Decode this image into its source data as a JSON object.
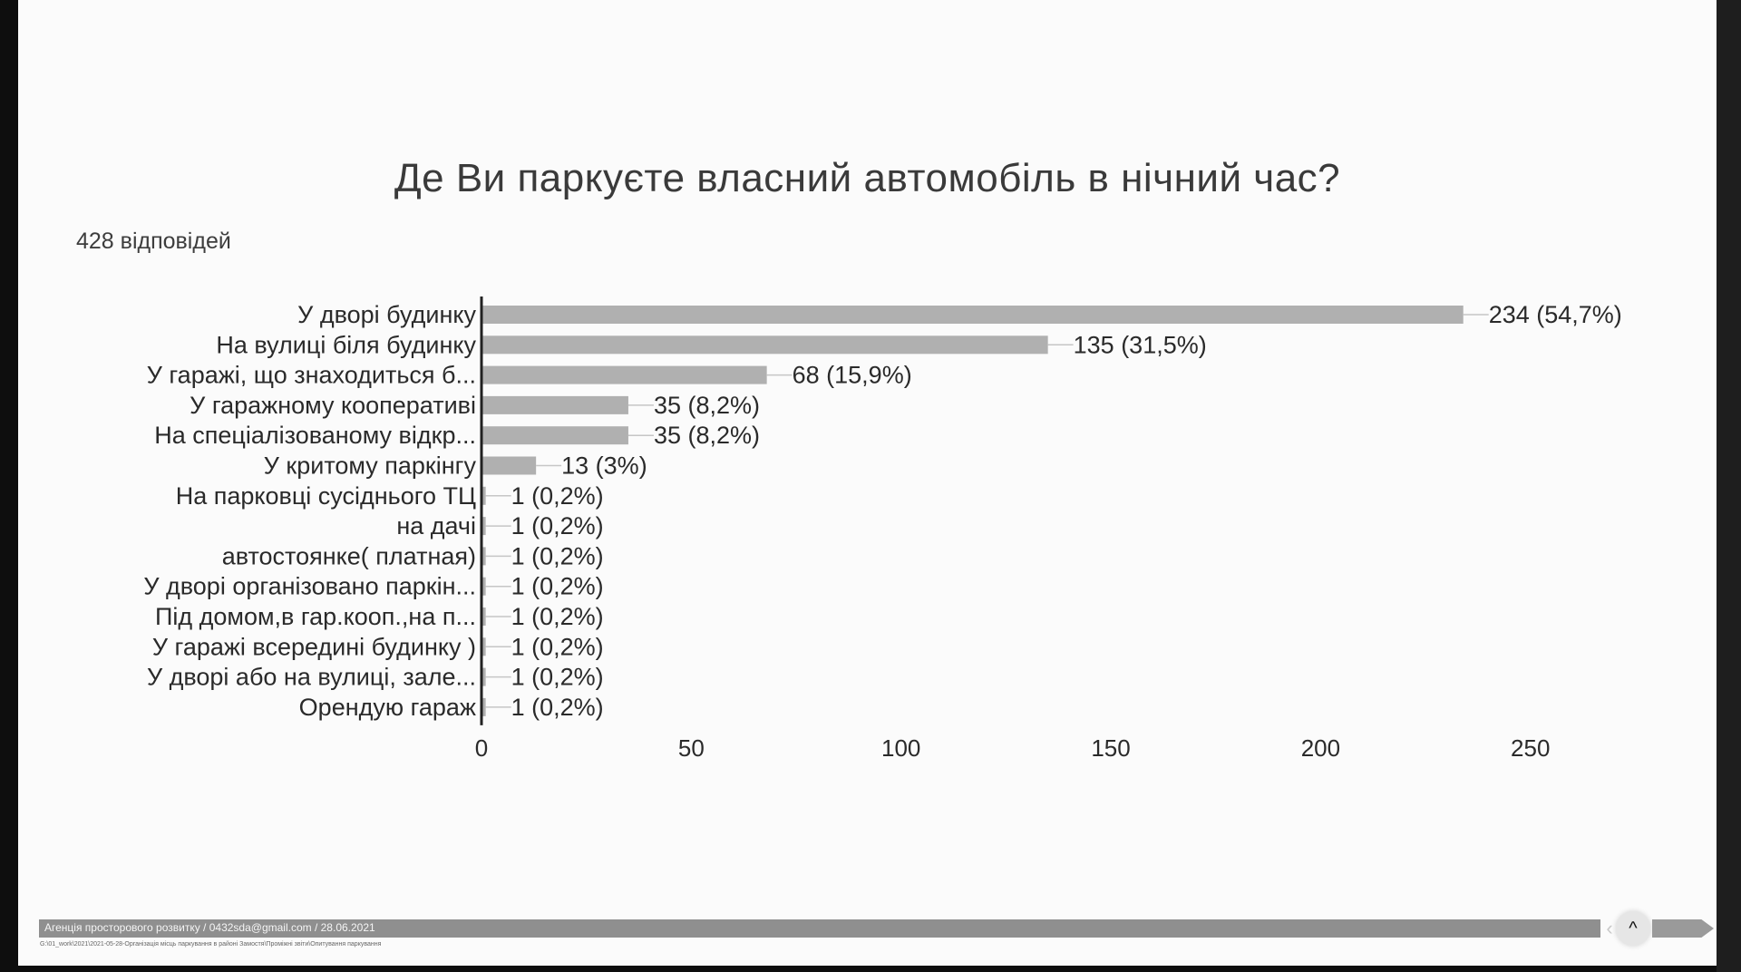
{
  "title": "Де Ви паркуєте власний автомобіль в нічний час?",
  "responses": "428 відповідей",
  "footer": {
    "text": "Агенція просторового розвитку / 0432sda@gmail.com / 28.06.2021",
    "path": "G:\\01_work\\2021\\2021-05-28-Організація місць паркування в районі Замостя\\Проміжні звіти\\Опитування паркування"
  },
  "icons": {
    "prev": "chevron-left-icon",
    "up": "chevron-up-icon",
    "next": "arrow-right-icon"
  },
  "colors": {
    "bar": "#b0b0b0",
    "axis": "#222222",
    "leader": "#c6c6c6",
    "text": "#2a2a2a"
  },
  "chart_data": {
    "type": "bar",
    "orientation": "horizontal",
    "categories": [
      "У дворі будинку",
      "На вулиці біля будинку",
      "У гаражі, що знаходиться б...",
      "У гаражному кооперативі",
      "На спеціалізованому відкр...",
      "У критому паркінгу",
      "На парковці сусіднього ТЦ",
      "на дачі",
      "автостоянке( платная)",
      "У дворі організовано паркін...",
      "Під домом,в гар.кооп.,на п...",
      "У гаражі всередині будинку )",
      "У дворі або на вулиці, зале...",
      "Орендую гараж"
    ],
    "values": [
      234,
      135,
      68,
      35,
      35,
      13,
      1,
      1,
      1,
      1,
      1,
      1,
      1,
      1
    ],
    "value_labels": [
      "234 (54,7%)",
      "135 (31,5%)",
      "68 (15,9%)",
      "35 (8,2%)",
      "35 (8,2%)",
      "13 (3%)",
      "1 (0,2%)",
      "1 (0,2%)",
      "1 (0,2%)",
      "1 (0,2%)",
      "1 (0,2%)",
      "1 (0,2%)",
      "1 (0,2%)",
      "1 (0,2%)"
    ],
    "xticks": [
      0,
      50,
      100,
      150,
      200,
      250
    ],
    "xlim": [
      0,
      250
    ],
    "grid": false,
    "legend": "none"
  }
}
